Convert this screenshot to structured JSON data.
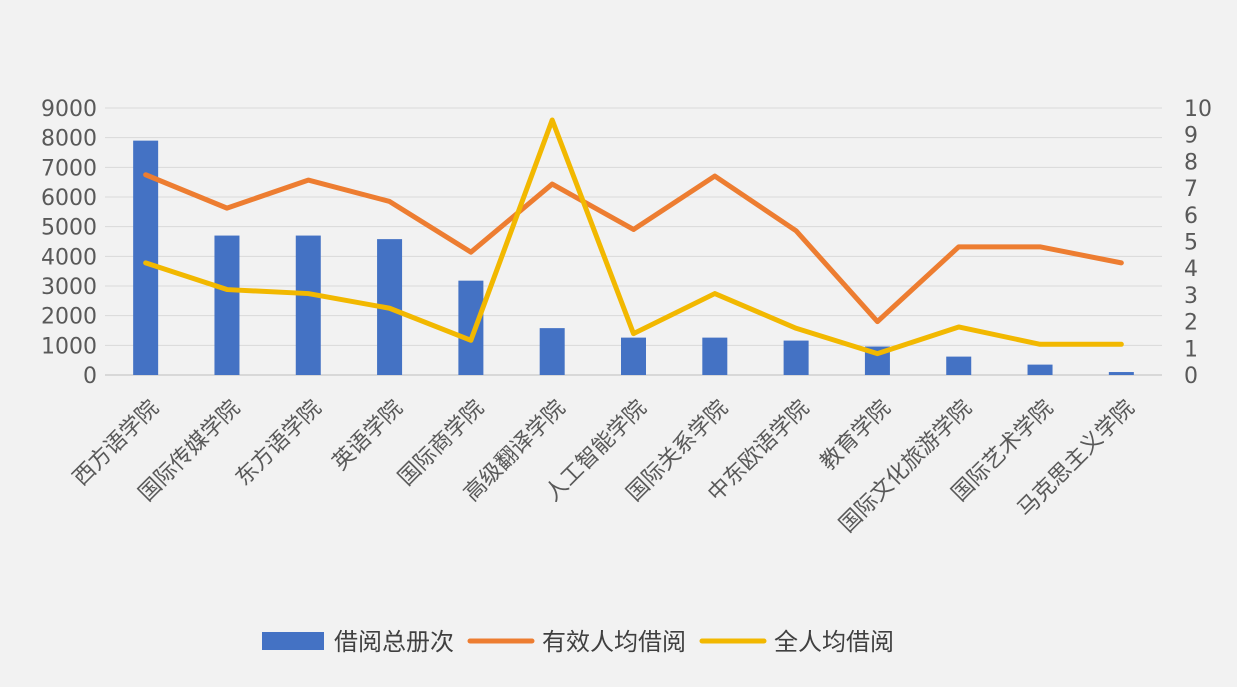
{
  "chart_data": {
    "type": "bar",
    "categories": [
      "西方语学院",
      "国际传媒学院",
      "东方语学院",
      "英语学院",
      "国际商学院",
      "高级翻译学院",
      "人工智能学院",
      "国际关系学院",
      "中东欧语学院",
      "教育学院",
      "国际文化旅游学院",
      "国际艺术学院",
      "马克思主义学院"
    ],
    "series": [
      {
        "name": "借阅总册次",
        "type": "bar",
        "axis": "left",
        "color": "#4472c4",
        "values": [
          7900,
          4700,
          4700,
          4580,
          3180,
          1580,
          1260,
          1260,
          1160,
          960,
          620,
          350,
          100
        ]
      },
      {
        "name": "有效人均借阅",
        "type": "line",
        "axis": "right",
        "color": "#ed7d31",
        "values": [
          7.5,
          6.25,
          7.3,
          6.5,
          4.6,
          7.15,
          5.45,
          7.45,
          5.4,
          2.0,
          4.8,
          4.8,
          4.2
        ]
      },
      {
        "name": "全人均借阅",
        "type": "line",
        "axis": "right",
        "color": "#f2b800",
        "values": [
          4.2,
          3.2,
          3.05,
          2.5,
          1.3,
          9.55,
          1.55,
          3.05,
          1.75,
          0.8,
          1.8,
          1.15,
          1.15
        ]
      }
    ],
    "y_left": {
      "min": 0,
      "max": 9000,
      "step": 1000,
      "ticks": [
        "0",
        "1000",
        "2000",
        "3000",
        "4000",
        "5000",
        "6000",
        "7000",
        "8000",
        "9000"
      ]
    },
    "y_right": {
      "min": 0,
      "max": 10,
      "step": 1,
      "ticks": [
        "0",
        "1",
        "2",
        "3",
        "4",
        "5",
        "6",
        "7",
        "8",
        "9",
        "10"
      ]
    },
    "title": "",
    "xlabel": "",
    "ylabel": "",
    "grid": true,
    "legend": "bottom",
    "gridColor": "#d9d9d9",
    "axisColor": "#bfbfbf"
  }
}
